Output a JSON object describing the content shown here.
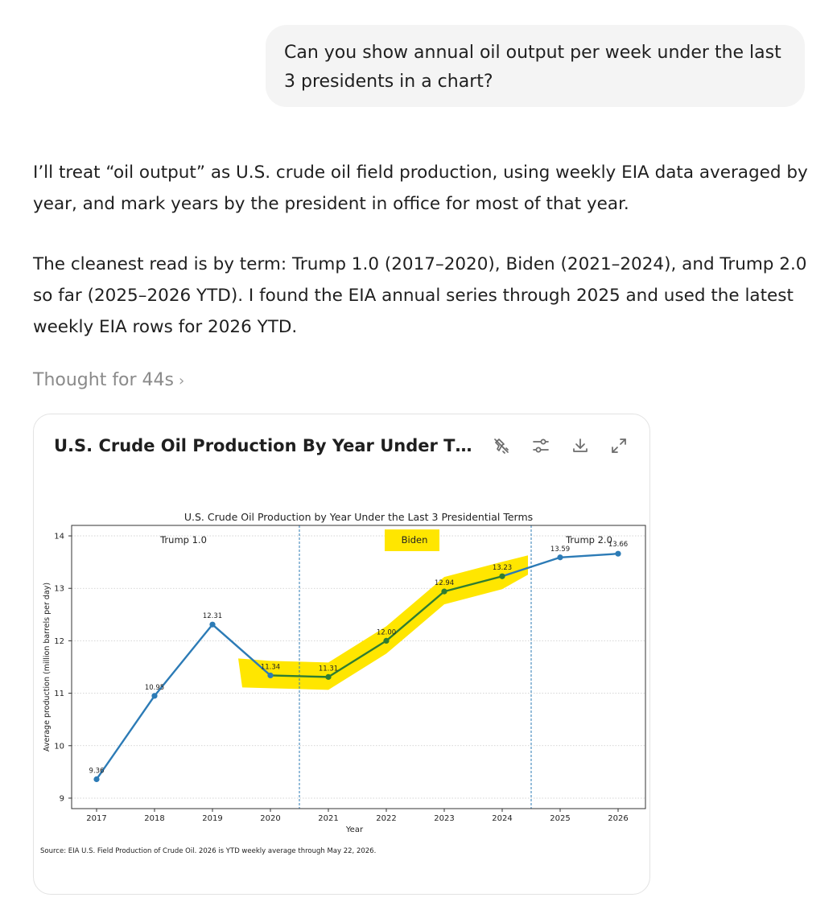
{
  "conversation": {
    "user_message": "Can you show annual oil output per week under the last 3 presidents in a chart?",
    "reply_paragraph_1": "I’ll treat “oil output” as U.S. crude oil field production, using weekly EIA data averaged by year, and mark years by the president in office for most of that year.",
    "reply_paragraph_2": "The cleanest read is by term: Trump 1.0 (2017–2020), Biden (2021–2024), and Trump 2.0 so far (2025–2026 YTD). I found the EIA annual series through 2025 and used the latest weekly EIA rows for 2026 YTD.",
    "thought_label": "Thought for 44s",
    "thought_chevron": "›"
  },
  "card": {
    "title": "U.S. Crude Oil Production By Year Under The L...",
    "icons": [
      "unpin-icon",
      "sliders-icon",
      "download-icon",
      "expand-icon"
    ]
  },
  "chart_data": {
    "type": "line",
    "title": "U.S. Crude Oil Production by Year Under the Last 3 Presidential Terms",
    "xlabel": "Year",
    "ylabel": "Average production (million barrels per day)",
    "categories": [
      "2017",
      "2018",
      "2019",
      "2020",
      "2021",
      "2022",
      "2023",
      "2024",
      "2025",
      "2026"
    ],
    "values": [
      9.36,
      10.95,
      12.31,
      11.34,
      11.31,
      12.0,
      12.94,
      13.23,
      13.59,
      13.66
    ],
    "data_labels": [
      "9.36",
      "10.95",
      "12.31",
      "11.34",
      "11.31",
      "12.00",
      "12.94",
      "13.23",
      "13.59",
      "13.66"
    ],
    "ylim": [
      8.8,
      14.2
    ],
    "yticks": [
      "9",
      "10",
      "11",
      "12",
      "13",
      "14"
    ],
    "grid": "horizontal dotted",
    "term_dividers_after": [
      "2020",
      "2024"
    ],
    "term_labels": [
      "Trump 1.0",
      "Biden",
      "Trump 2.0"
    ],
    "highlighted_range": [
      "2020",
      "2024"
    ],
    "colors": {
      "line": "#2c7bb6",
      "highlighted_line": "#2e7d32",
      "highlighter": "#ffe600",
      "divider": "#2c7bb6",
      "grid": "#c8c8c8"
    },
    "source_note": "Source: EIA U.S. Field Production of Crude Oil. 2026 is YTD weekly average through May 22, 2026."
  }
}
